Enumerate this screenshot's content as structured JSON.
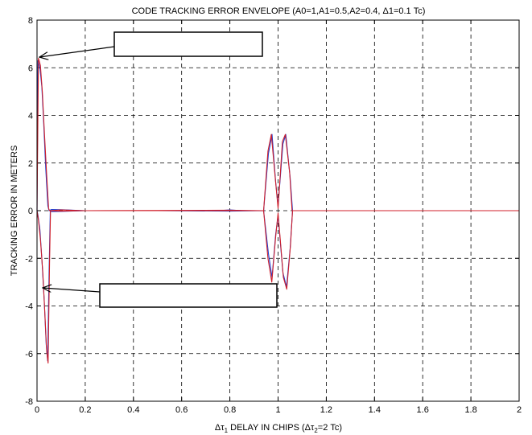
{
  "chart_data": {
    "type": "line",
    "title": "CODE TRACKING ERROR ENVELOPE (A0=1,A1=0.5,A2=0.4, Δ1=0.1 Tc)",
    "xlabel": {
      "prefix": "Δτ",
      "sub": "1",
      "middle": " DELAY IN CHIPS (Δτ",
      "sub2": "2",
      "suffix": "=2 Tc)"
    },
    "ylabel": "TRACKING ERROR IN METERS",
    "xlim": [
      0,
      2
    ],
    "ylim": [
      -8,
      8
    ],
    "xticks": [
      0,
      0.2,
      0.4,
      0.6,
      0.8,
      1,
      1.2,
      1.4,
      1.6,
      1.8,
      2
    ],
    "xtick_labels": [
      "0",
      "0.2",
      "0.4",
      "0.6",
      "0.8",
      "1",
      "1.2",
      "1.4",
      "1.6",
      "1.8",
      "2"
    ],
    "yticks": [
      -8,
      -6,
      -4,
      -2,
      0,
      2,
      4,
      6,
      8
    ],
    "ytick_labels": [
      "-8",
      "-6",
      "-4",
      "-2",
      "0",
      "2",
      "4",
      "6",
      "8"
    ],
    "grid": true,
    "series": [
      {
        "color": "#1f3fd0",
        "upper": [
          [
            0,
            0
          ],
          [
            0.004,
            6.3
          ],
          [
            0.012,
            6.0
          ],
          [
            0.02,
            5.2
          ],
          [
            0.028,
            3.6
          ],
          [
            0.036,
            1.8
          ],
          [
            0.045,
            0.2
          ],
          [
            0.05,
            0
          ],
          [
            0.06,
            0.05
          ],
          [
            0.1,
            0.04
          ],
          [
            0.15,
            0.02
          ],
          [
            0.2,
            0
          ],
          [
            0.5,
            0
          ],
          [
            0.75,
            0
          ],
          [
            0.8,
            0.03
          ],
          [
            0.85,
            0
          ],
          [
            0.94,
            0
          ],
          [
            0.96,
            2.4
          ],
          [
            0.975,
            3.2
          ],
          [
            0.99,
            1.2
          ],
          [
            1.0,
            0.2
          ],
          [
            1.02,
            2.8
          ],
          [
            1.032,
            3.2
          ],
          [
            1.05,
            1.4
          ],
          [
            1.06,
            0
          ],
          [
            1.1,
            0
          ],
          [
            2,
            0
          ]
        ],
        "lower": [
          [
            0,
            0
          ],
          [
            0.004,
            -0.2
          ],
          [
            0.012,
            -0.8
          ],
          [
            0.02,
            -2.0
          ],
          [
            0.03,
            -3.8
          ],
          [
            0.038,
            -5.6
          ],
          [
            0.044,
            -6.3
          ],
          [
            0.05,
            -2.6
          ],
          [
            0.055,
            0
          ],
          [
            0.06,
            -0.04
          ],
          [
            0.1,
            -0.03
          ],
          [
            0.2,
            0
          ],
          [
            0.5,
            0
          ],
          [
            0.8,
            -0.02
          ],
          [
            0.94,
            0
          ],
          [
            0.96,
            -1.8
          ],
          [
            0.975,
            -2.8
          ],
          [
            0.99,
            -1.0
          ],
          [
            1.0,
            -0.2
          ],
          [
            1.02,
            -2.6
          ],
          [
            1.035,
            -3.2
          ],
          [
            1.05,
            -1.6
          ],
          [
            1.06,
            0
          ],
          [
            1.1,
            0
          ],
          [
            2,
            0
          ]
        ]
      },
      {
        "color": "#d01f2a",
        "upper": [
          [
            0,
            0
          ],
          [
            0.006,
            6.4
          ],
          [
            0.014,
            6.1
          ],
          [
            0.022,
            5.0
          ],
          [
            0.03,
            3.4
          ],
          [
            0.04,
            1.5
          ],
          [
            0.048,
            0.1
          ],
          [
            0.052,
            0
          ],
          [
            0.1,
            0.03
          ],
          [
            0.2,
            0
          ],
          [
            0.8,
            0.02
          ],
          [
            0.94,
            0
          ],
          [
            0.958,
            2.5
          ],
          [
            0.972,
            3.2
          ],
          [
            0.988,
            1.4
          ],
          [
            1.0,
            0.1
          ],
          [
            1.018,
            2.9
          ],
          [
            1.03,
            3.2
          ],
          [
            1.048,
            1.6
          ],
          [
            1.058,
            0
          ],
          [
            2,
            0
          ]
        ],
        "lower": [
          [
            0,
            0
          ],
          [
            0.006,
            -0.4
          ],
          [
            0.014,
            -1.2
          ],
          [
            0.024,
            -2.6
          ],
          [
            0.032,
            -4.2
          ],
          [
            0.04,
            -5.9
          ],
          [
            0.046,
            -6.4
          ],
          [
            0.052,
            -2.2
          ],
          [
            0.056,
            0
          ],
          [
            0.1,
            -0.02
          ],
          [
            0.2,
            0
          ],
          [
            0.94,
            0
          ],
          [
            0.958,
            -2.0
          ],
          [
            0.974,
            -3.0
          ],
          [
            0.99,
            -1.1
          ],
          [
            1.0,
            -0.1
          ],
          [
            1.022,
            -2.8
          ],
          [
            1.036,
            -3.3
          ],
          [
            1.052,
            -1.4
          ],
          [
            1.06,
            0
          ],
          [
            2,
            0
          ]
        ]
      }
    ],
    "annotation_boxes": [
      {
        "text": ""
      },
      {
        "text": ""
      }
    ]
  }
}
